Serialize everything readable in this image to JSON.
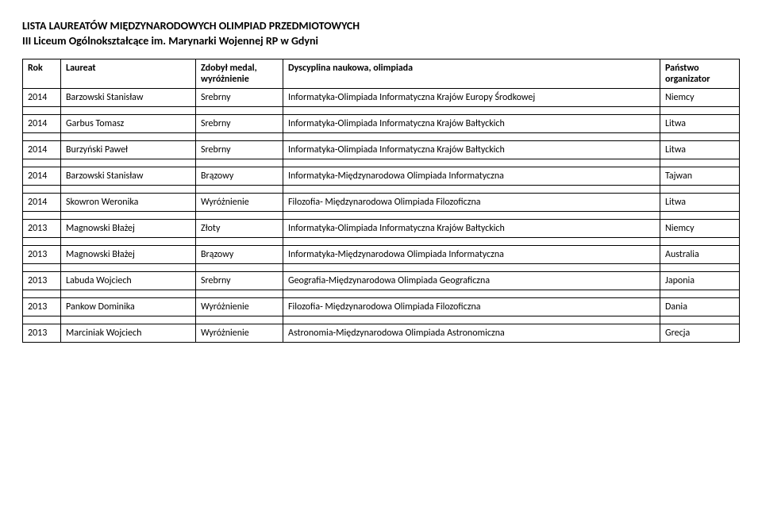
{
  "header": {
    "title1": "LISTA LAUREATÓW MIĘDZYNARODOWYCH OLIMPIAD PRZEDMIOTOWYCH",
    "title2": "III Liceum Ogólnokształcące im. Marynarki Wojennej RP w Gdyni"
  },
  "table": {
    "columns": {
      "year": "Rok",
      "laureate": "Laureat",
      "medal_line1": "Zdobył medal,",
      "medal_line2": "wyróżnienie",
      "discipline": "Dyscyplina naukowa, olimpiada",
      "country_line1": "Państwo",
      "country_line2": "organizator"
    },
    "rows": [
      {
        "year": "2014",
        "name": "Barzowski Stanisław",
        "medal": "Srebrny",
        "disc": "Informatyka-Olimpiada Informatyczna Krajów Europy Środkowej",
        "country": "Niemcy"
      },
      {
        "year": "2014",
        "name": "Garbus Tomasz",
        "medal": "Srebrny",
        "disc": "Informatyka-Olimpiada Informatyczna Krajów Bałtyckich",
        "country": "Litwa"
      },
      {
        "year": "2014",
        "name": "Burzyński Paweł",
        "medal": "Srebrny",
        "disc": "Informatyka-Olimpiada Informatyczna Krajów Bałtyckich",
        "country": "Litwa"
      },
      {
        "year": "2014",
        "name": "Barzowski Stanisław",
        "medal": "Brązowy",
        "disc": "Informatyka-Międzynarodowa Olimpiada Informatyczna",
        "country": "Tajwan"
      },
      {
        "year": "2014",
        "name": "Skowron Weronika",
        "medal": "Wyróżnienie",
        "disc": "Filozofia- Międzynarodowa Olimpiada Filozoficzna",
        "country": "Litwa"
      },
      {
        "year": "2013",
        "name": "Magnowski Błażej",
        "medal": "Złoty",
        "disc": "Informatyka-Olimpiada Informatyczna Krajów Bałtyckich",
        "country": "Niemcy"
      },
      {
        "year": "2013",
        "name": "Magnowski Błażej",
        "medal": "Brązowy",
        "disc": "Informatyka-Międzynarodowa Olimpiada Informatyczna",
        "country": "Australia"
      },
      {
        "year": "2013",
        "name": "Labuda Wojciech",
        "medal": "Srebrny",
        "disc": "Geografia-Międzynarodowa Olimpiada Geograficzna",
        "country": "Japonia"
      },
      {
        "year": "2013",
        "name": "Pankow Dominika",
        "medal": "Wyróżnienie",
        "disc": "Filozofia- Międzynarodowa Olimpiada Filozoficzna",
        "country": "Dania"
      },
      {
        "year": "2013",
        "name": "Marciniak Wojciech",
        "medal": "Wyróżnienie",
        "disc": "Astronomia-Międzynarodowa Olimpiada Astronomiczna",
        "country": "Grecja"
      }
    ]
  }
}
